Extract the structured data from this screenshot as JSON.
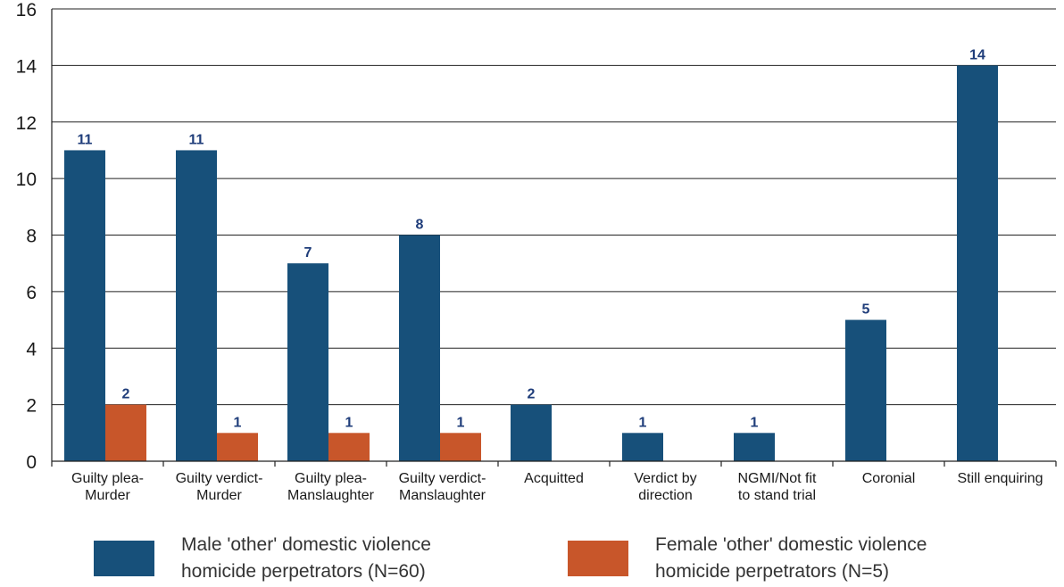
{
  "chart_data": {
    "type": "bar",
    "categories": [
      [
        "Guilty plea-",
        "Murder"
      ],
      [
        "Guilty verdict-",
        "Murder"
      ],
      [
        "Guilty plea-",
        "Manslaughter"
      ],
      [
        "Guilty verdict-",
        "Manslaughter"
      ],
      [
        "Acquitted"
      ],
      [
        "Verdict by",
        "direction"
      ],
      [
        "NGMI/Not fit",
        "to stand trial"
      ],
      [
        "Coronial"
      ],
      [
        "Still enquiring"
      ]
    ],
    "series": [
      {
        "name": "Male 'other' domestic violence homicide perpetrators (N=60)",
        "legend_lines": [
          "Male 'other' domestic violence",
          "homicide perpetrators (N=60)"
        ],
        "color": "#17507a",
        "values": [
          11,
          11,
          7,
          8,
          2,
          1,
          1,
          5,
          14
        ],
        "labels": [
          "11",
          "11",
          "7",
          "8",
          "2",
          "1",
          "1",
          "5",
          "14"
        ]
      },
      {
        "name": "Female 'other' domestic violence homicide perpetrators (N=5)",
        "legend_lines": [
          "Female 'other' domestic violence",
          "homicide perpetrators (N=5)"
        ],
        "color": "#c8562a",
        "values": [
          2,
          1,
          1,
          1,
          0,
          0,
          0,
          0,
          0
        ],
        "labels": [
          "2",
          "1",
          "1",
          "1",
          "",
          "",
          "",
          "",
          ""
        ]
      }
    ],
    "ylim": [
      0,
      16
    ],
    "yticks": [
      "0",
      "2",
      "4",
      "6",
      "8",
      "10",
      "12",
      "14",
      "16"
    ],
    "grid": true,
    "legend_position": "bottom"
  }
}
